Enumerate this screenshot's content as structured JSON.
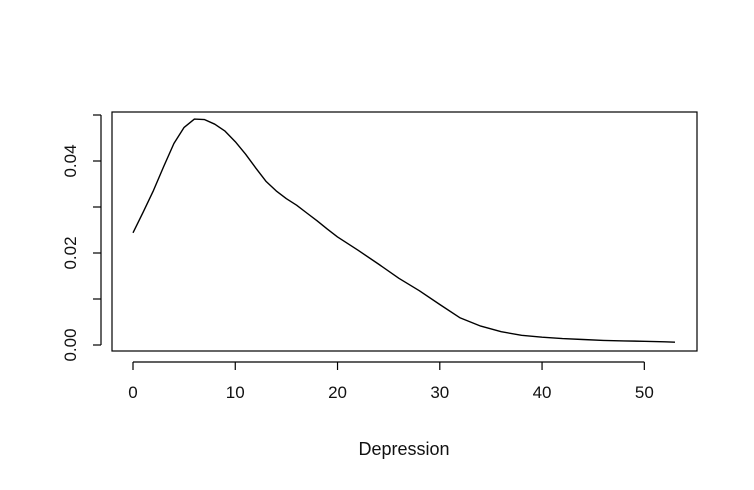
{
  "chart_data": {
    "type": "line",
    "title": "",
    "xlabel": "Depression",
    "ylabel": "",
    "xlim": [
      0,
      53
    ],
    "ylim": [
      0,
      0.05
    ],
    "grid": false,
    "x_ticks": [
      0,
      10,
      20,
      30,
      40,
      50
    ],
    "x_tick_labels": [
      "0",
      "10",
      "20",
      "30",
      "40",
      "50"
    ],
    "y_ticks": [
      0,
      0.01,
      0.02,
      0.03,
      0.04,
      0.05
    ],
    "y_tick_labels": [
      "0.00",
      "",
      "0.02",
      "",
      "0.04",
      ""
    ],
    "series": [
      {
        "color": "#000000",
        "x": [
          0,
          1,
          2,
          3,
          4,
          5,
          6,
          7,
          8,
          9,
          10,
          11,
          12,
          13,
          14,
          15,
          16,
          17,
          18,
          19,
          20,
          22,
          24,
          26,
          28,
          30,
          32,
          34,
          36,
          38,
          40,
          42,
          44,
          46,
          48,
          50,
          52,
          53
        ],
        "y": [
          0.0244,
          0.0289,
          0.0336,
          0.0388,
          0.0438,
          0.0473,
          0.0491,
          0.049,
          0.048,
          0.0465,
          0.0442,
          0.0415,
          0.0385,
          0.0356,
          0.0335,
          0.0318,
          0.0304,
          0.0287,
          0.027,
          0.0252,
          0.0235,
          0.0206,
          0.0176,
          0.0145,
          0.0118,
          0.0088,
          0.0059,
          0.0041,
          0.0029,
          0.0021,
          0.0017,
          0.0014,
          0.0012,
          0.001,
          0.0009,
          0.0008,
          0.0007,
          0.0006
        ]
      }
    ]
  }
}
